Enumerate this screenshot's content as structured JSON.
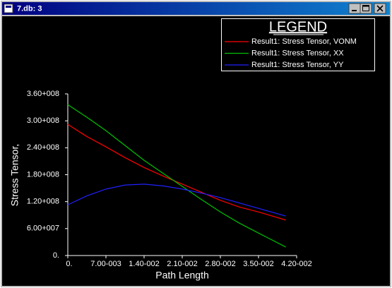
{
  "window": {
    "title": "7.db: 3"
  },
  "chart_data": {
    "type": "line",
    "legend_title": "LEGEND",
    "x_label": "Path Length",
    "y_label": "Stress Tensor,",
    "x": [
      0,
      0.0035,
      0.007,
      0.0105,
      0.014,
      0.0175,
      0.021,
      0.0245,
      0.028,
      0.0315,
      0.035,
      0.04
    ],
    "series": [
      {
        "name": "Result1: Stress Tensor, VONM",
        "color": "#ff0000",
        "values": [
          292000000,
          265000000,
          242000000,
          218000000,
          196000000,
          177000000,
          159000000,
          141000000,
          123000000,
          108000000,
          97000000,
          79000000
        ]
      },
      {
        "name": "Result1: Stress Tensor, XX",
        "color": "#00c000",
        "values": [
          336000000,
          308000000,
          278000000,
          245000000,
          212000000,
          183000000,
          154000000,
          125000000,
          97000000,
          72000000,
          50000000,
          19000000
        ]
      },
      {
        "name": "Result1: Stress Tensor, YY",
        "color": "#2020ff",
        "values": [
          113000000,
          133000000,
          148000000,
          157000000,
          159000000,
          155000000,
          148000000,
          139000000,
          129000000,
          117000000,
          105000000,
          88000000
        ]
      }
    ],
    "xlim": [
      0,
      0.042
    ],
    "ylim": [
      0,
      360000000
    ],
    "xticks": [
      {
        "value": 0,
        "label": "0."
      },
      {
        "value": 0.007,
        "label": "7.00-003"
      },
      {
        "value": 0.014,
        "label": "1.40-002"
      },
      {
        "value": 0.021,
        "label": "2.10-002"
      },
      {
        "value": 0.028,
        "label": "2.80-002"
      },
      {
        "value": 0.035,
        "label": "3.50-002"
      },
      {
        "value": 0.042,
        "label": "4.20-002"
      }
    ],
    "yticks": [
      {
        "value": 0,
        "label": "0."
      },
      {
        "value": 60000000,
        "label": "6.00+007"
      },
      {
        "value": 120000000,
        "label": "1.20+008"
      },
      {
        "value": 180000000,
        "label": "1.80+008"
      },
      {
        "value": 240000000,
        "label": "2.40+008"
      },
      {
        "value": 300000000,
        "label": "3.00+008"
      },
      {
        "value": 360000000,
        "label": "3.60+008"
      }
    ]
  }
}
